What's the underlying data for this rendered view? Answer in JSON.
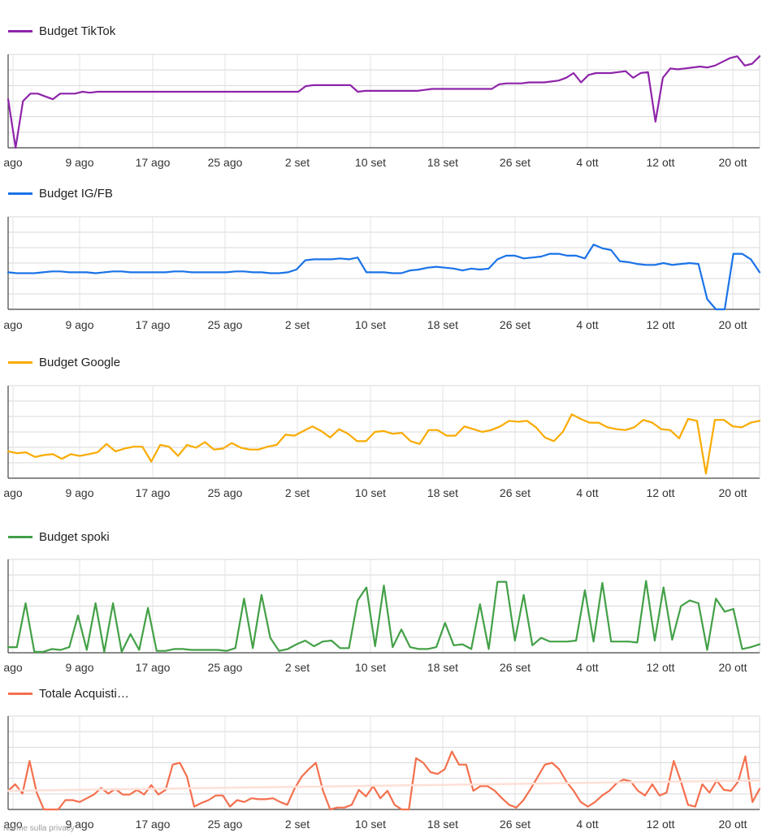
{
  "x_ticks": [
    "ago",
    "9 ago",
    "17 ago",
    "25 ago",
    "2 set",
    "10 set",
    "18 set",
    "26 set",
    "4 ott",
    "12 ott",
    "20 ott"
  ],
  "footer": {
    "privacy_label": "Norme sulla privacy"
  },
  "chart_data": [
    {
      "type": "line",
      "series": [
        {
          "name": "Budget TikTok",
          "color": "#8e24aa",
          "values": [
            52,
            0,
            50,
            58,
            58,
            55,
            52,
            58,
            58,
            58,
            60,
            59,
            60,
            60,
            60,
            60,
            60,
            60,
            60,
            60,
            60,
            60,
            60,
            60,
            60,
            60,
            60,
            60,
            60,
            60,
            60,
            60,
            60,
            60,
            60,
            60,
            60,
            60,
            60,
            60,
            66,
            67,
            67,
            67,
            67,
            67,
            67,
            60,
            61,
            61,
            61,
            61,
            61,
            61,
            61,
            61,
            62,
            63,
            63,
            63,
            63,
            63,
            63,
            63,
            63,
            63,
            68,
            69,
            69,
            69,
            70,
            70,
            70,
            71,
            72,
            75,
            80,
            70,
            78,
            80,
            80,
            80,
            81,
            82,
            75,
            80,
            81,
            28,
            75,
            85,
            84,
            85,
            86,
            87,
            86,
            88,
            92,
            96,
            98,
            88,
            90,
            98
          ]
        }
      ],
      "ylim": [
        0,
        100
      ],
      "grid": true,
      "legend": "top-left"
    },
    {
      "type": "line",
      "series": [
        {
          "name": "Budget IG/FB",
          "color": "#1a73e8",
          "values": [
            40,
            39,
            39,
            39,
            40,
            41,
            41,
            40,
            40,
            40,
            39,
            40,
            41,
            41,
            40,
            40,
            40,
            40,
            40,
            41,
            41,
            40,
            40,
            40,
            40,
            40,
            41,
            41,
            40,
            40,
            39,
            39,
            40,
            43,
            53,
            54,
            54,
            54,
            55,
            54,
            56,
            40,
            40,
            40,
            39,
            39,
            42,
            43,
            45,
            46,
            45,
            44,
            42,
            44,
            43,
            44,
            54,
            58,
            58,
            55,
            56,
            57,
            60,
            60,
            58,
            58,
            55,
            70,
            66,
            64,
            52,
            51,
            49,
            48,
            48,
            50,
            48,
            49,
            50,
            49,
            11,
            0,
            0,
            60,
            60,
            54,
            40
          ]
        }
      ],
      "ylim": [
        0,
        100
      ],
      "grid": true,
      "legend": "top-left"
    },
    {
      "type": "line",
      "series": [
        {
          "name": "Budget Google",
          "color": "#f9ab00",
          "values": [
            29,
            27,
            28,
            23,
            25,
            26,
            21,
            26,
            24,
            26,
            28,
            37,
            29,
            32,
            34,
            34,
            18,
            36,
            34,
            24,
            36,
            33,
            39,
            31,
            32,
            38,
            33,
            31,
            31,
            34,
            36,
            47,
            46,
            51,
            56,
            51,
            44,
            53,
            48,
            40,
            40,
            50,
            51,
            48,
            49,
            40,
            37,
            52,
            52,
            46,
            46,
            56,
            53,
            50,
            52,
            56,
            62,
            61,
            62,
            55,
            44,
            40,
            50,
            69,
            64,
            60,
            60,
            55,
            53,
            52,
            55,
            63,
            60,
            53,
            52,
            43,
            64,
            62,
            5,
            63,
            63,
            56,
            55,
            60,
            62
          ]
        }
      ],
      "ylim": [
        0,
        100
      ],
      "grid": true,
      "legend": "top-left"
    },
    {
      "type": "line",
      "series": [
        {
          "name": "Budget spoki",
          "color": "#43a047",
          "values": [
            6,
            6,
            53,
            1,
            1,
            4,
            3,
            6,
            40,
            3,
            53,
            1,
            53,
            1,
            20,
            3,
            48,
            2,
            2,
            4,
            4,
            3,
            3,
            3,
            3,
            2,
            5,
            58,
            5,
            62,
            16,
            2,
            4,
            9,
            13,
            7,
            12,
            13,
            5,
            5,
            56,
            70,
            7,
            72,
            6,
            25,
            6,
            4,
            4,
            6,
            32,
            8,
            9,
            4,
            52,
            4,
            76,
            76,
            13,
            62,
            8,
            16,
            12,
            12,
            12,
            13,
            67,
            12,
            75,
            12,
            12,
            12,
            11,
            77,
            13,
            70,
            14,
            50,
            56,
            53,
            3,
            58,
            44,
            47,
            4,
            6,
            9
          ]
        }
      ],
      "ylim": [
        0,
        100
      ],
      "grid": true,
      "legend": "top-left"
    },
    {
      "type": "line",
      "series": [
        {
          "name": "Totale Acquisti…",
          "color": "#f4704e",
          "values": [
            20,
            27,
            17,
            52,
            18,
            0,
            0,
            0,
            10,
            10,
            8,
            12,
            16,
            23,
            17,
            22,
            16,
            16,
            21,
            16,
            26,
            16,
            21,
            48,
            50,
            35,
            3,
            7,
            10,
            15,
            15,
            3,
            10,
            8,
            12,
            11,
            11,
            12,
            8,
            5,
            22,
            35,
            43,
            50,
            20,
            0,
            2,
            2,
            5,
            21,
            14,
            25,
            12,
            20,
            5,
            0,
            0,
            55,
            50,
            40,
            38,
            43,
            62,
            48,
            48,
            20,
            25,
            25,
            20,
            12,
            5,
            2,
            10,
            22,
            35,
            48,
            50,
            43,
            30,
            20,
            8,
            3,
            8,
            15,
            20,
            28,
            32,
            30,
            20,
            15,
            27,
            15,
            18,
            52,
            30,
            5,
            3,
            27,
            18,
            31,
            21,
            20,
            30,
            57,
            8,
            22
          ]
        },
        {
          "name": "",
          "color": "#fde0d6",
          "values": [
            20,
            21,
            22,
            23,
            24,
            25,
            26,
            27,
            28,
            29,
            30,
            31
          ]
        }
      ],
      "ylim": [
        0,
        100
      ],
      "grid": true,
      "legend": "top-left"
    }
  ]
}
